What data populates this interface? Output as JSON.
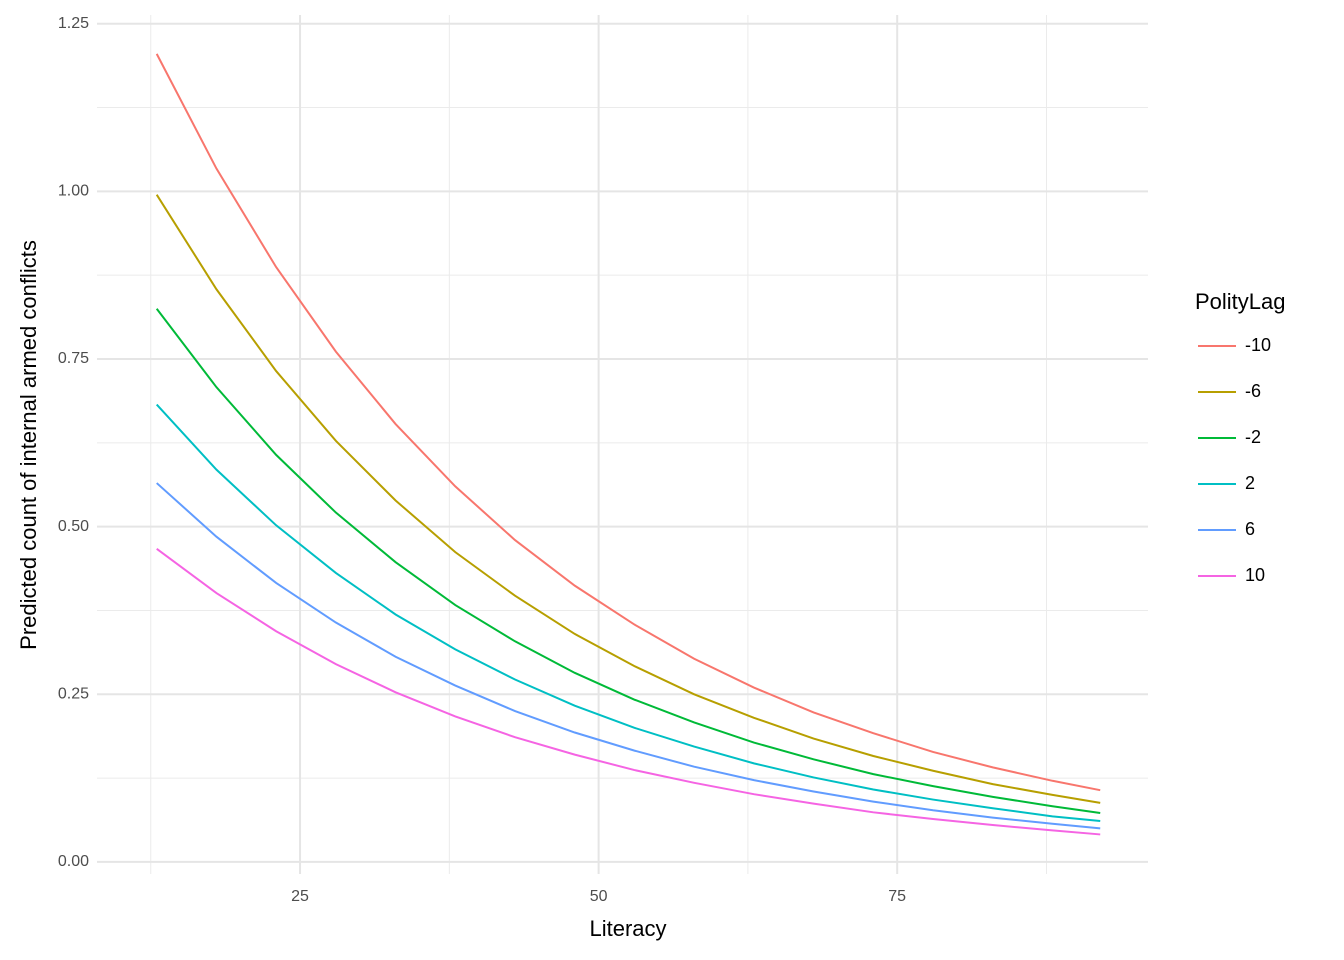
{
  "chart_data": {
    "type": "line",
    "x_label": "Literacy",
    "y_label": "Predicted count of internal armed conflicts",
    "legend_title": "PolityLag",
    "legend_position": "right",
    "grid": true,
    "xlim": [
      8,
      96
    ],
    "ylim": [
      -0.018,
      1.263
    ],
    "xticks": [
      25,
      50,
      75
    ],
    "yticks": [
      {
        "value": 0,
        "label": "0.00"
      },
      {
        "value": 0.25,
        "label": "0.25"
      },
      {
        "value": 0.5,
        "label": "0.50"
      },
      {
        "value": 0.75,
        "label": "0.75"
      },
      {
        "value": 1,
        "label": "1.00"
      },
      {
        "value": 1.25,
        "label": "1.25"
      }
    ],
    "x": [
      13,
      18,
      23,
      28,
      33,
      38,
      43,
      48,
      53,
      58,
      63,
      68,
      73,
      78,
      83,
      88,
      92
    ],
    "series": [
      {
        "name": "-10",
        "color": "#f8766d",
        "values": [
          1.205,
          1.034,
          0.887,
          0.761,
          0.653,
          0.56,
          0.48,
          0.412,
          0.354,
          0.303,
          0.26,
          0.223,
          0.192,
          0.164,
          0.141,
          0.121,
          0.107
        ]
      },
      {
        "name": "-6",
        "color": "#b79f00",
        "values": [
          0.995,
          0.854,
          0.732,
          0.628,
          0.539,
          0.462,
          0.397,
          0.34,
          0.292,
          0.25,
          0.215,
          0.184,
          0.158,
          0.136,
          0.116,
          0.1,
          0.088
        ]
      },
      {
        "name": "-2",
        "color": "#00ba38",
        "values": [
          0.825,
          0.708,
          0.607,
          0.521,
          0.447,
          0.383,
          0.329,
          0.282,
          0.242,
          0.208,
          0.178,
          0.153,
          0.131,
          0.113,
          0.097,
          0.083,
          0.073
        ]
      },
      {
        "name": "2",
        "color": "#00bfc4",
        "values": [
          0.682,
          0.585,
          0.502,
          0.431,
          0.369,
          0.317,
          0.272,
          0.233,
          0.2,
          0.172,
          0.147,
          0.126,
          0.108,
          0.093,
          0.08,
          0.068,
          0.061
        ]
      },
      {
        "name": "6",
        "color": "#619cff",
        "values": [
          0.565,
          0.485,
          0.416,
          0.357,
          0.306,
          0.263,
          0.225,
          0.193,
          0.166,
          0.142,
          0.122,
          0.105,
          0.09,
          0.077,
          0.066,
          0.057,
          0.05
        ]
      },
      {
        "name": "10",
        "color": "#f564e3",
        "values": [
          0.467,
          0.401,
          0.344,
          0.295,
          0.253,
          0.217,
          0.186,
          0.16,
          0.137,
          0.118,
          0.101,
          0.087,
          0.074,
          0.064,
          0.055,
          0.047,
          0.041
        ]
      }
    ]
  }
}
